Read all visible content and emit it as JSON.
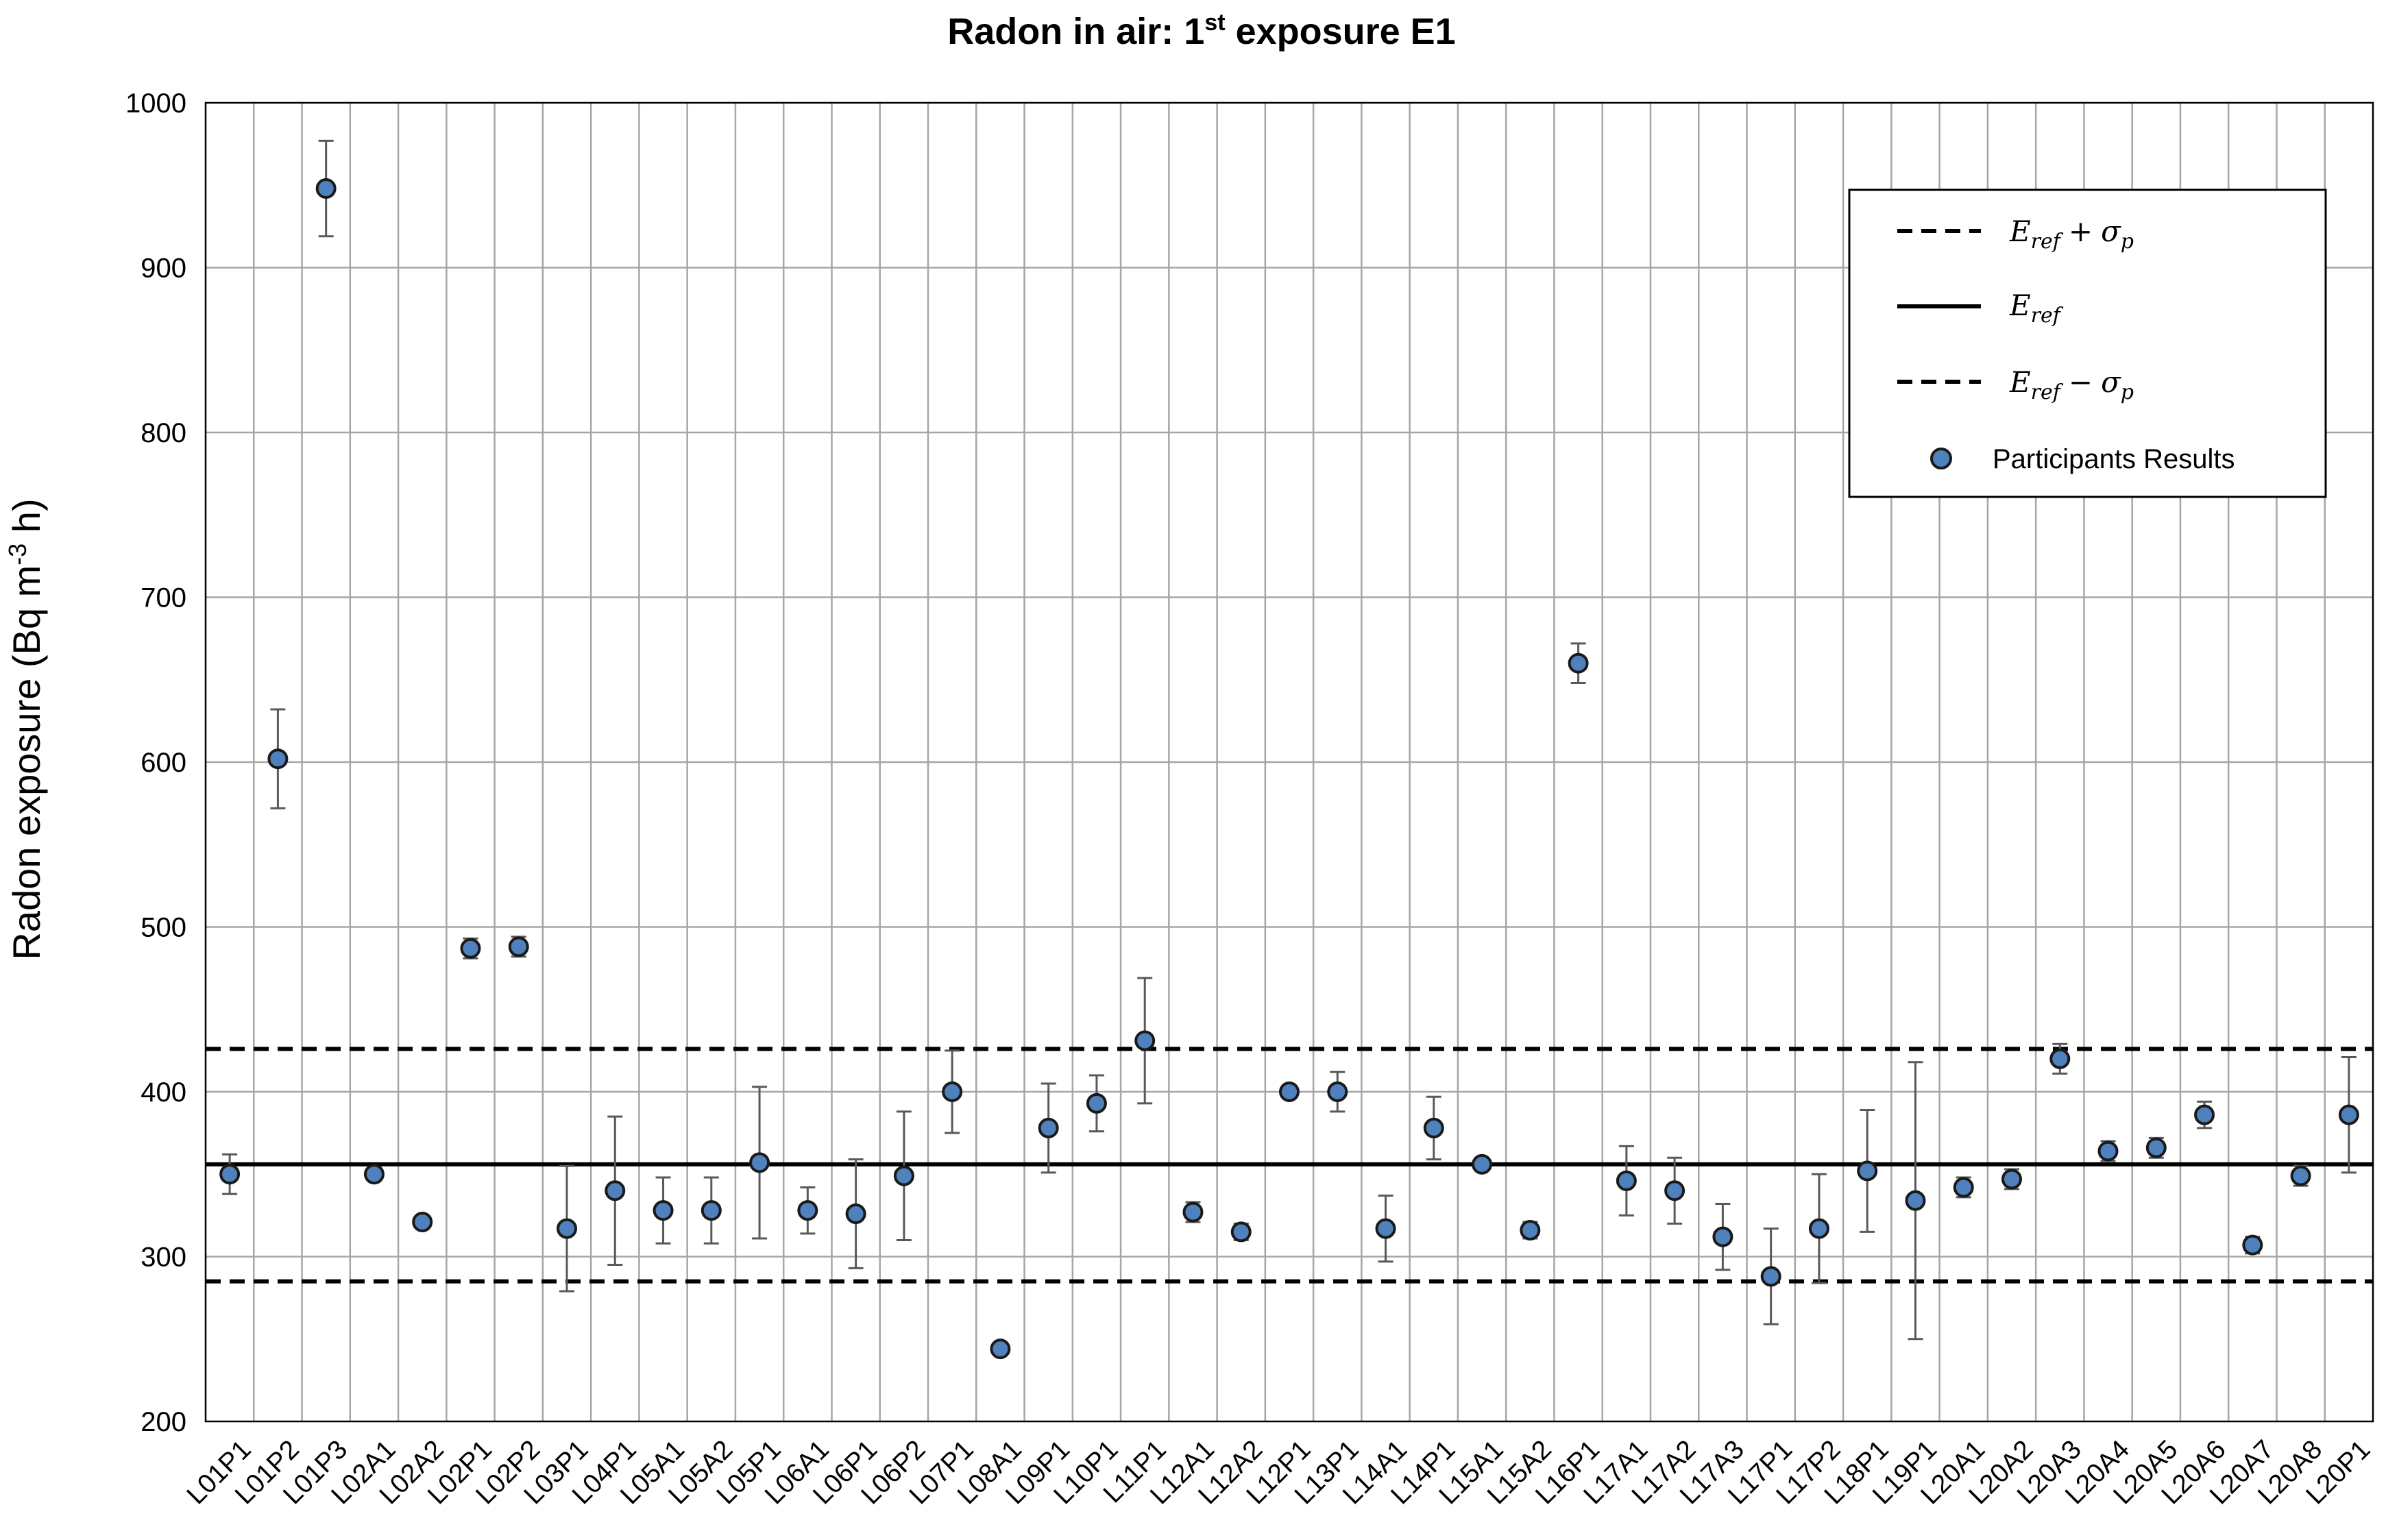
{
  "chart_data": {
    "type": "scatter",
    "title": "Radon in air: 1st exposure E1",
    "title_main": "Radon in air: 1",
    "title_sup": "st",
    "title_rest": " exposure E1",
    "ylabel": "Radon exposure (Bq m-3 h)",
    "ylabel_main": "Radon exposure (Bq m",
    "ylabel_sup": "-3",
    "ylabel_rest": " h)",
    "ylim": [
      200,
      1000
    ],
    "yticks": [
      200,
      300,
      400,
      500,
      600,
      700,
      800,
      900,
      1000
    ],
    "grid": true,
    "legend_position": "top-right",
    "reference_lines": {
      "upper": 426,
      "ref": 356,
      "lower": 285
    },
    "legend": [
      {
        "type": "dashed",
        "base": "E",
        "sub": "ref",
        "op": "+",
        "sigma": "σ",
        "sigma_sub": "p"
      },
      {
        "type": "solid",
        "base": "E",
        "sub": "ref"
      },
      {
        "type": "dashed",
        "base": "E",
        "sub": "ref",
        "op": "−",
        "sigma": "σ",
        "sigma_sub": "p"
      },
      {
        "type": "marker",
        "label": "Participants Results"
      }
    ],
    "colors": {
      "marker_fill": "#4f81bd",
      "marker_stroke": "#1a1a1a",
      "errorbar": "#595959",
      "grid": "#a6a6a6",
      "ref_line": "#000000"
    },
    "categories": [
      "L01P1",
      "L01P2",
      "L01P3",
      "L02A1",
      "L02A2",
      "L02P1",
      "L02P2",
      "L03P1",
      "L04P1",
      "L05A1",
      "L05A2",
      "L05P1",
      "L06A1",
      "L06P1",
      "L06P2",
      "L07P1",
      "L08A1",
      "L09P1",
      "L10P1",
      "L11P1",
      "L12A1",
      "L12A2",
      "L12P1",
      "L13P1",
      "L14A1",
      "L14P1",
      "L15A1",
      "L15A2",
      "L16P1",
      "L17A1",
      "L17A2",
      "L17A3",
      "L17P1",
      "L17P2",
      "L18P1",
      "L19P1",
      "L20A1",
      "L20A2",
      "L20A3",
      "L20A4",
      "L20A5",
      "L20A6",
      "L20A7",
      "L20A8",
      "L20P1"
    ],
    "series": [
      {
        "name": "Participants Results",
        "values": [
          350,
          602,
          948,
          350,
          321,
          487,
          488,
          317,
          340,
          328,
          328,
          357,
          328,
          326,
          349,
          400,
          244,
          378,
          393,
          431,
          327,
          315,
          400,
          400,
          317,
          378,
          356,
          316,
          660,
          346,
          340,
          312,
          288,
          317,
          352,
          334,
          342,
          347,
          420,
          364,
          366,
          386,
          307,
          349,
          386
        ],
        "err_low": [
          338,
          572,
          919,
          350,
          321,
          481,
          482,
          279,
          295,
          308,
          308,
          311,
          314,
          293,
          310,
          375,
          244,
          351,
          376,
          393,
          321,
          310,
          400,
          388,
          297,
          359,
          356,
          311,
          648,
          325,
          320,
          292,
          259,
          284,
          315,
          250,
          336,
          341,
          411,
          358,
          360,
          378,
          302,
          343,
          351
        ],
        "err_high": [
          362,
          632,
          977,
          350,
          321,
          493,
          494,
          355,
          385,
          348,
          348,
          403,
          342,
          359,
          388,
          425,
          244,
          405,
          410,
          469,
          333,
          320,
          400,
          412,
          337,
          397,
          356,
          321,
          672,
          367,
          360,
          332,
          317,
          350,
          389,
          418,
          348,
          353,
          429,
          370,
          372,
          394,
          312,
          355,
          421
        ]
      }
    ]
  }
}
